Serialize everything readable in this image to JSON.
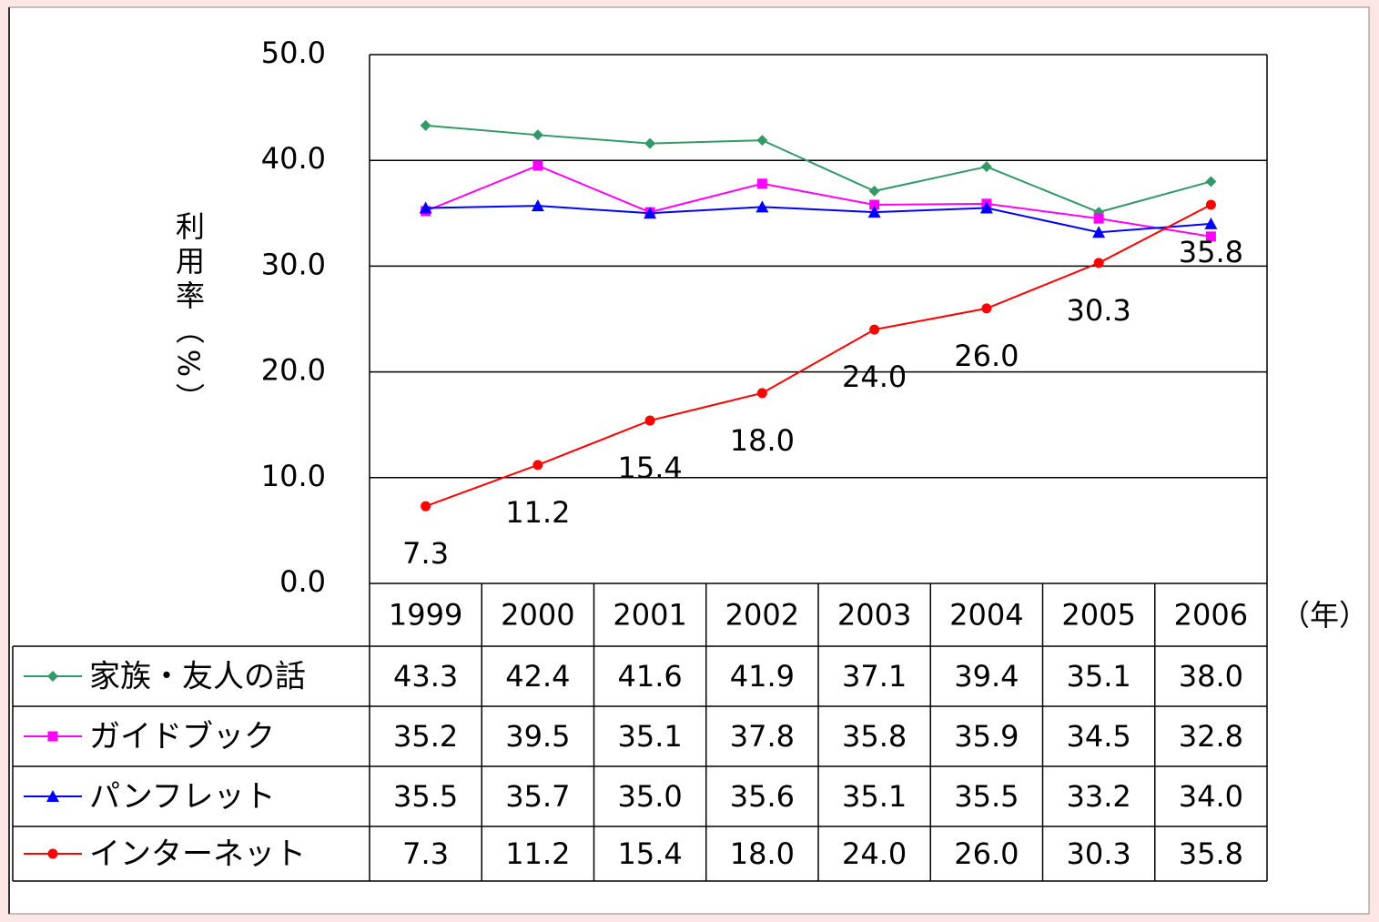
{
  "chart_data": {
    "type": "line",
    "y_label": "利用率（%）",
    "x_unit": "（年）",
    "categories": [
      "1999",
      "2000",
      "2001",
      "2002",
      "2003",
      "2004",
      "2005",
      "2006"
    ],
    "ylim": [
      0,
      50
    ],
    "yticks": [
      {
        "value": 0,
        "label": "0.0"
      },
      {
        "value": 10,
        "label": "10.0"
      },
      {
        "value": 20,
        "label": "20.0"
      },
      {
        "value": 30,
        "label": "30.0"
      },
      {
        "value": 40,
        "label": "40.0"
      },
      {
        "value": 50,
        "label": "50.0"
      }
    ],
    "grid": true,
    "series": [
      {
        "name": "家族・友人の話",
        "color": "#339966",
        "marker": "diamond",
        "values": [
          43.3,
          42.4,
          41.6,
          41.9,
          37.1,
          39.4,
          35.1,
          38.0
        ],
        "value_labels": [
          "43.3",
          "42.4",
          "41.6",
          "41.9",
          "37.1",
          "39.4",
          "35.1",
          "38.0"
        ]
      },
      {
        "name": "ガイドブック",
        "color": "#ff00ff",
        "marker": "square",
        "values": [
          35.2,
          39.5,
          35.1,
          37.8,
          35.8,
          35.9,
          34.5,
          32.8
        ],
        "value_labels": [
          "35.2",
          "39.5",
          "35.1",
          "37.8",
          "35.8",
          "35.9",
          "34.5",
          "32.8"
        ]
      },
      {
        "name": "パンフレット",
        "color": "#0000ff",
        "marker": "triangle",
        "values": [
          35.5,
          35.7,
          35.0,
          35.6,
          35.1,
          35.5,
          33.2,
          34.0
        ],
        "value_labels": [
          "35.5",
          "35.7",
          "35.0",
          "35.6",
          "35.1",
          "35.5",
          "33.2",
          "34.0"
        ]
      },
      {
        "name": "インターネット",
        "color": "#ff0000",
        "marker": "circle",
        "data_labels": true,
        "values": [
          7.3,
          11.2,
          15.4,
          18.0,
          24.0,
          26.0,
          30.3,
          35.8
        ],
        "value_labels": [
          "7.3",
          "11.2",
          "15.4",
          "18.0",
          "24.0",
          "26.0",
          "30.3",
          "35.8"
        ]
      }
    ]
  }
}
